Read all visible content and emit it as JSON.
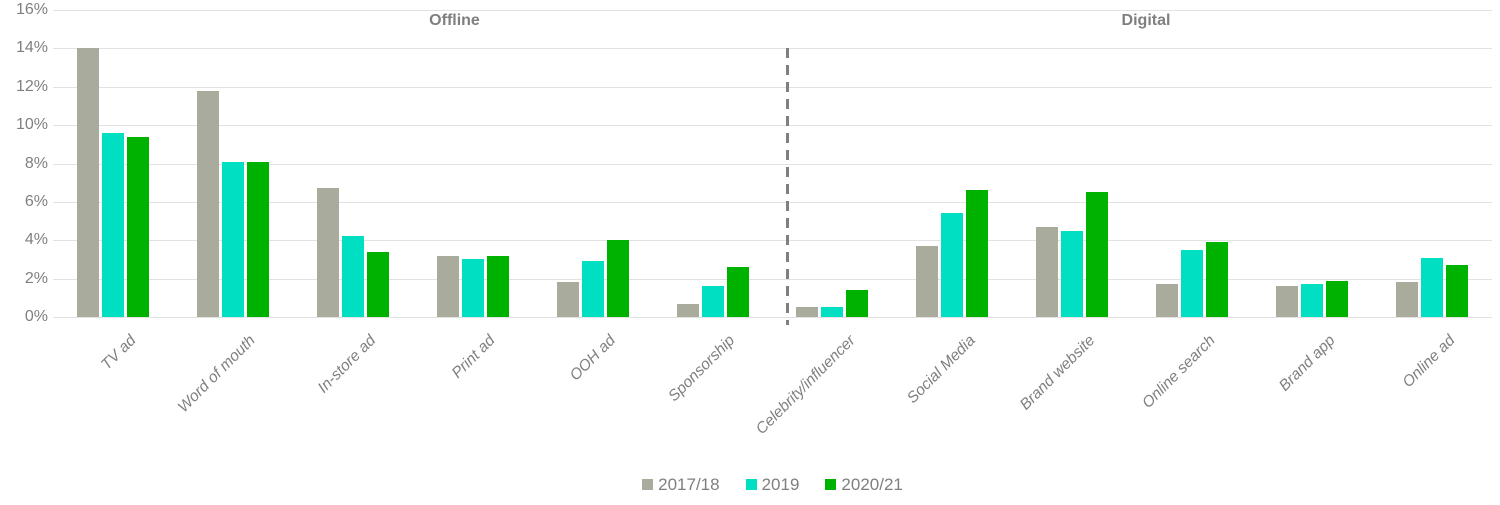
{
  "chart_data": {
    "type": "bar",
    "title": "",
    "categories": [
      "TV ad",
      "Word of mouth",
      "In-store ad",
      "Print ad",
      "OOH ad",
      "Sponsorship",
      "Celebrity/influencer",
      "Social Media",
      "Brand website",
      "Online search",
      "Brand app",
      "Online ad"
    ],
    "series": [
      {
        "name": "2017/18",
        "color": "#a9ac9d",
        "values": [
          14.0,
          11.8,
          6.7,
          3.2,
          1.8,
          0.7,
          0.5,
          3.7,
          4.7,
          1.7,
          1.6,
          1.8
        ]
      },
      {
        "name": "2019",
        "color": "#00dfc2",
        "values": [
          9.6,
          8.1,
          4.2,
          3.0,
          2.9,
          1.6,
          0.5,
          5.4,
          4.5,
          3.5,
          1.7,
          3.1
        ]
      },
      {
        "name": "2020/21",
        "color": "#00b200",
        "values": [
          9.4,
          8.1,
          3.4,
          3.2,
          4.0,
          2.6,
          1.4,
          6.6,
          6.5,
          3.9,
          1.9,
          2.7
        ]
      }
    ],
    "y_axis": {
      "min": 0,
      "max": 16,
      "step": 2,
      "tick_labels": [
        "0%",
        "2%",
        "4%",
        "6%",
        "8%",
        "10%",
        "12%",
        "14%",
        "16%"
      ]
    },
    "sections": [
      {
        "label": "Offline",
        "from_category": 0,
        "to_category": 5
      },
      {
        "label": "Digital",
        "from_category": 6,
        "to_category": 11
      }
    ],
    "legend_position": "bottom",
    "grid": true,
    "colors": {
      "gridline": "#e2e2e2",
      "axis_text": "#7f7f7f",
      "section_title": "#7f7f7f",
      "divider": "#7f7f7f"
    }
  }
}
